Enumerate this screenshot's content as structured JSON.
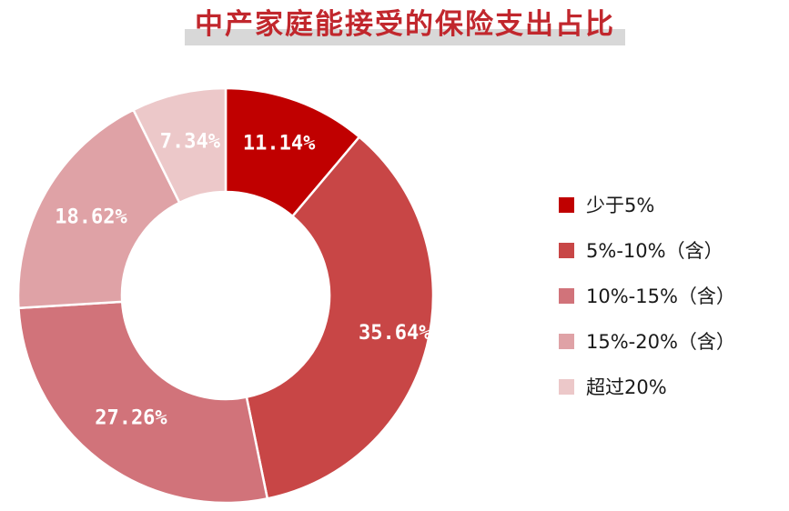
{
  "chart_data": {
    "type": "pie",
    "variant": "donut",
    "title": "中产家庭能接受的保险支出占比",
    "categories": [
      "少于5%",
      "5%-10%（含）",
      "10%-15%（含）",
      "15%-20%（含）",
      "超过20%"
    ],
    "values": [
      11.14,
      35.64,
      27.26,
      18.62,
      7.34
    ],
    "labels": [
      "11.14%",
      "35.64%",
      "27.26%",
      "18.62%",
      "7.34%"
    ],
    "colors": [
      "#c00000",
      "#c84646",
      "#d1737a",
      "#dfa2a6",
      "#ecc8c9"
    ],
    "start_angle": "12 o'clock",
    "direction": "clockwise",
    "legend_position": "right"
  }
}
